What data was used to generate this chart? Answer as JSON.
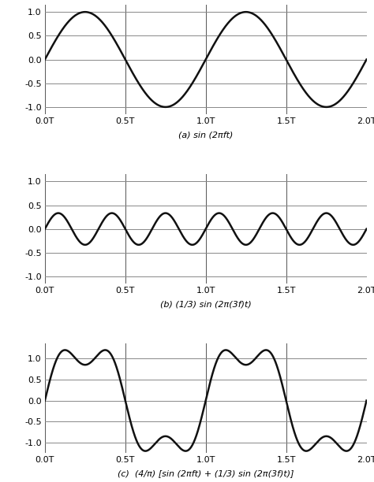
{
  "title_a": "(a) sin (2πft)",
  "title_b": "(b) (1/3) sin (2π(3f)t)",
  "title_c": "(c)  (4/π) [sin (2πft) + (1/3) sin (2π(3f)t)]",
  "xlim": [
    0,
    2.0
  ],
  "ylim_a": [
    -1.15,
    1.15
  ],
  "ylim_b": [
    -1.15,
    1.15
  ],
  "ylim_c": [
    -1.25,
    1.35
  ],
  "xtick_vals": [
    0.0,
    0.5,
    1.0,
    1.5,
    2.0
  ],
  "xtick_labels": [
    "0.0T",
    "0.5T",
    "1.0T",
    "1.5T",
    "2.0T"
  ],
  "ytick_vals_a": [
    -1.0,
    -0.5,
    0.0,
    0.5,
    1.0
  ],
  "ytick_vals_b": [
    -1.0,
    -0.5,
    0.0,
    0.5,
    1.0
  ],
  "ytick_vals_c": [
    -1.0,
    -0.5,
    0.0,
    0.5,
    1.0
  ],
  "line_color": "#111111",
  "bg_color": "#ffffff",
  "grid_color": "#888888",
  "vline_color": "#555555",
  "n_points": 3000,
  "line_width": 1.8,
  "fig_width": 4.74,
  "fig_height": 6.12,
  "dpi": 100
}
